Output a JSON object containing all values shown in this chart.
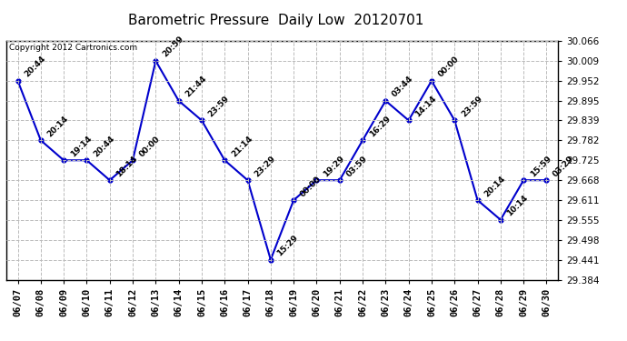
{
  "title": "Barometric Pressure  Daily Low  20120701",
  "copyright": "Copyright 2012 Cartronics.com",
  "x_labels": [
    "06/07",
    "06/08",
    "06/09",
    "06/10",
    "06/11",
    "06/12",
    "06/13",
    "06/14",
    "06/15",
    "06/16",
    "06/17",
    "06/18",
    "06/19",
    "06/20",
    "06/21",
    "06/22",
    "06/23",
    "06/24",
    "06/25",
    "06/26",
    "06/27",
    "06/28",
    "06/29",
    "06/30"
  ],
  "y_values": [
    29.952,
    29.782,
    29.725,
    29.725,
    29.668,
    29.725,
    30.009,
    29.895,
    29.839,
    29.725,
    29.668,
    29.441,
    29.611,
    29.668,
    29.668,
    29.782,
    29.895,
    29.839,
    29.952,
    29.839,
    29.611,
    29.555,
    29.668,
    29.668
  ],
  "annotations": [
    "20:44",
    "20:14",
    "19:14",
    "20:44",
    "18:14",
    "00:00",
    "20:59",
    "21:44",
    "23:59",
    "21:14",
    "23:29",
    "15:29",
    "00:00",
    "19:29",
    "03:59",
    "16:29",
    "03:44",
    "14:14",
    "00:00",
    "23:59",
    "20:14",
    "10:14",
    "15:59",
    "03:29"
  ],
  "ylim": [
    29.384,
    30.066
  ],
  "yticks": [
    29.384,
    29.441,
    29.498,
    29.555,
    29.611,
    29.668,
    29.725,
    29.782,
    29.839,
    29.895,
    29.952,
    30.009,
    30.066
  ],
  "line_color": "#0000cc",
  "marker_color": "#0000cc",
  "bg_color": "#ffffff",
  "plot_bg_color": "#ffffff",
  "grid_color": "#bbbbbb",
  "title_fontsize": 11,
  "annot_fontsize": 6.5,
  "tick_fontsize": 7.5,
  "copyright_fontsize": 6.5
}
